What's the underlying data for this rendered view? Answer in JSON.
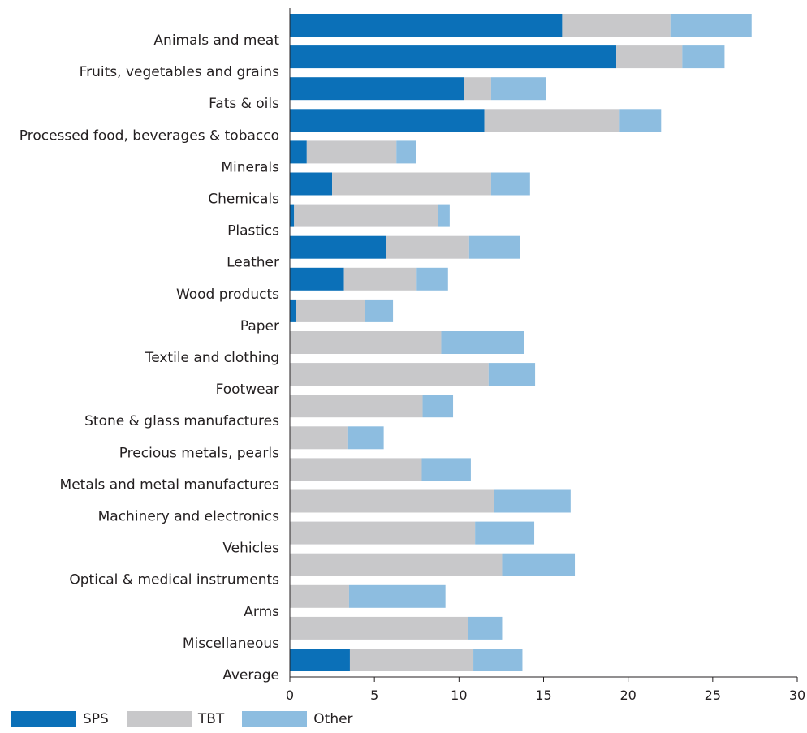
{
  "chart_data": {
    "type": "bar",
    "orientation": "horizontal",
    "stacked": true,
    "categories": [
      "Animals and meat",
      "Fruits, vegetables and grains",
      "Fats & oils",
      "Processed food, beverages & tobacco",
      "Minerals",
      "Chemicals",
      "Plastics",
      "Leather",
      "Wood products",
      "Paper",
      "Textile and clothing",
      "Footwear",
      "Stone & glass manufactures",
      "Precious metals, pearls",
      "Metals and metal manufactures",
      "Machinery and electronics",
      "Vehicles",
      "Optical & medical instruments",
      "Arms",
      "Miscellaneous",
      "Average"
    ],
    "series": [
      {
        "name": "SPS",
        "color": "#0b70b8",
        "values": [
          16.1,
          19.3,
          10.3,
          11.5,
          1.0,
          2.5,
          0.25,
          5.7,
          3.2,
          0.35,
          0,
          0,
          0,
          0,
          0,
          0,
          0,
          0,
          0,
          0,
          3.55
        ]
      },
      {
        "name": "TBT",
        "color": "#c8c8ca",
        "values": [
          6.4,
          3.9,
          1.6,
          8.0,
          5.3,
          9.4,
          8.5,
          4.9,
          4.3,
          4.1,
          8.95,
          11.75,
          7.85,
          3.45,
          7.8,
          12.05,
          10.95,
          12.55,
          3.5,
          10.55,
          7.3
        ]
      },
      {
        "name": "Other",
        "color": "#8dbde0",
        "values": [
          4.8,
          2.5,
          3.25,
          2.45,
          1.15,
          2.3,
          0.7,
          3.0,
          1.85,
          1.65,
          4.9,
          2.75,
          1.8,
          2.1,
          2.9,
          4.55,
          3.5,
          4.3,
          5.7,
          2.0,
          2.9
        ]
      }
    ],
    "xlim": [
      0,
      30
    ],
    "xticks": [
      "0",
      "5",
      "10",
      "15",
      "20",
      "25",
      "30"
    ],
    "grid": false,
    "legend_position": "bottom-left"
  }
}
